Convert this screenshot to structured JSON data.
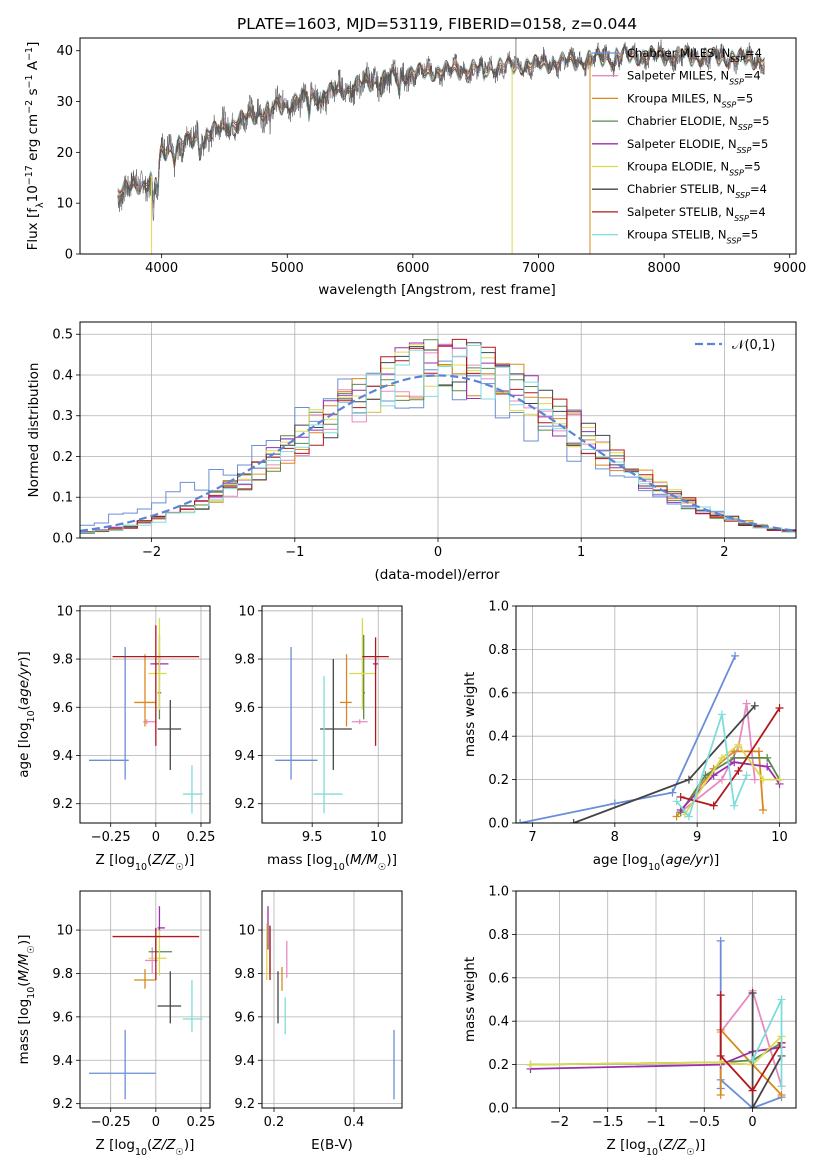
{
  "figure_title": "PLATE=1603, MJD=53119, FIBERID=0158, z=0.044",
  "model_colors": [
    "#6a8ed8",
    "#e78ac3",
    "#d9881f",
    "#5a8a4e",
    "#9b2fae",
    "#dcd94c",
    "#444444",
    "#b2181b",
    "#80dcdc"
  ],
  "spectrum_legend": [
    {
      "main": "Chabrier MILES, N",
      "sub": "SSP",
      "tail": "=4"
    },
    {
      "main": "Salpeter MILES, N",
      "sub": "SSP",
      "tail": "=4"
    },
    {
      "main": "Kroupa MILES, N",
      "sub": "SSP",
      "tail": "=5"
    },
    {
      "main": "Chabrier ELODIE, N",
      "sub": "SSP",
      "tail": "=5"
    },
    {
      "main": "Salpeter ELODIE, N",
      "sub": "SSP",
      "tail": "=5"
    },
    {
      "main": "Kroupa ELODIE, N",
      "sub": "SSP",
      "tail": "=5"
    },
    {
      "main": "Chabrier STELIB, N",
      "sub": "SSP",
      "tail": "=4"
    },
    {
      "main": "Salpeter STELIB, N",
      "sub": "SSP",
      "tail": "=4"
    },
    {
      "main": "Kroupa STELIB, N",
      "sub": "SSP",
      "tail": "=5"
    }
  ],
  "chart_data": [
    {
      "id": "spectrum",
      "type": "line",
      "xlabel": "wavelength [Angstrom, rest frame]",
      "ylabel": "Flux [f_λ 10^-17 erg cm^-2 s^-1 A^-1]",
      "xlim": [
        3350,
        9050
      ],
      "ylim": [
        0,
        42.5
      ],
      "xticks": [
        4000,
        5000,
        6000,
        7000,
        8000,
        9000
      ],
      "yticks": [
        0,
        10,
        20,
        30,
        40
      ],
      "continuum": [
        [
          3650,
          12
        ],
        [
          3800,
          13.5
        ],
        [
          3950,
          15
        ],
        [
          4000,
          20
        ],
        [
          4200,
          22
        ],
        [
          4400,
          24
        ],
        [
          4600,
          26
        ],
        [
          4800,
          28
        ],
        [
          5000,
          29.5
        ],
        [
          5200,
          31
        ],
        [
          5400,
          32
        ],
        [
          5600,
          33.5
        ],
        [
          5800,
          34.5
        ],
        [
          6000,
          35.5
        ],
        [
          6200,
          36
        ],
        [
          6400,
          36.2
        ],
        [
          6600,
          36.7
        ],
        [
          6800,
          37
        ],
        [
          7000,
          37.3
        ],
        [
          7200,
          37.8
        ],
        [
          7400,
          38.2
        ],
        [
          7600,
          39
        ],
        [
          7800,
          39
        ],
        [
          8000,
          39
        ],
        [
          8200,
          38.8
        ],
        [
          8400,
          38.7
        ],
        [
          8600,
          38.5
        ],
        [
          8800,
          38
        ]
      ],
      "model_drops": [
        [
          3920,
          5
        ],
        [
          6790,
          5
        ],
        [
          7410,
          2
        ]
      ]
    },
    {
      "id": "residual_hist",
      "type": "histogram",
      "xlabel": "(data-model)/error",
      "ylabel": "Normed distribution",
      "xlim": [
        -2.5,
        2.5
      ],
      "ylim": [
        0,
        0.53
      ],
      "xticks": [
        -2,
        -1,
        0,
        1,
        2
      ],
      "yticks": [
        0.0,
        0.1,
        0.2,
        0.3,
        0.4,
        0.5
      ],
      "legend": "𝒩(0,1)",
      "reference_curve": "gaussian mean 0, sigma 1",
      "bin_width": 0.1
    },
    {
      "id": "Z_vs_age",
      "type": "errorbar",
      "xlabel": "Z [log10(Z/Z☉)]",
      "ylabel": "age [log10(age/yr)]",
      "xlim": [
        -0.42,
        0.3
      ],
      "ylim": [
        9.12,
        10.02
      ],
      "xticks": [
        -0.25,
        0.0,
        0.25
      ],
      "yticks": [
        9.2,
        9.4,
        9.6,
        9.8,
        10.0
      ],
      "points": [
        {
          "x": -0.17,
          "xerr": [
            0.2,
            0.02
          ],
          "y": 9.38,
          "yerr": [
            0.08,
            0.47
          ]
        },
        {
          "x": -0.05,
          "xerr": [
            0.02,
            0.05
          ],
          "y": 9.54,
          "yerr": [
            0.01,
            0.01
          ]
        },
        {
          "x": -0.06,
          "xerr": [
            0.06,
            0.06
          ],
          "y": 9.62,
          "yerr": [
            0.1,
            0.2
          ]
        },
        {
          "x": 0.02,
          "xerr": [
            0.01,
            0.01
          ],
          "y": 9.66,
          "yerr": [
            0.11,
            0.24
          ]
        },
        {
          "x": 0.02,
          "xerr": [
            0.05,
            0.05
          ],
          "y": 9.78,
          "yerr": [
            0.03,
            0.04
          ]
        },
        {
          "x": 0.02,
          "xerr": [
            0.06,
            0.04
          ],
          "y": 9.74,
          "yerr": [
            0.15,
            0.23
          ]
        },
        {
          "x": 0.08,
          "xerr": [
            0.07,
            0.06
          ],
          "y": 9.51,
          "yerr": [
            0.17,
            0.12
          ]
        },
        {
          "x": 0.0,
          "xerr": [
            0.24,
            0.24
          ],
          "y": 9.81,
          "yerr": [
            0.37,
            0.13
          ]
        },
        {
          "x": 0.2,
          "xerr": [
            0.05,
            0.06
          ],
          "y": 9.24,
          "yerr": [
            0.08,
            0.12
          ]
        }
      ]
    },
    {
      "id": "mass_vs_age",
      "type": "errorbar",
      "xlabel": "mass [log10(M/M☉)]",
      "ylabel": "",
      "xlim": [
        9.12,
        10.18
      ],
      "ylim": [
        9.12,
        10.02
      ],
      "xticks": [
        9.5,
        10.0
      ],
      "yticks": [
        9.2,
        9.4,
        9.6,
        9.8,
        10.0
      ],
      "points": [
        {
          "x": 9.34,
          "xerr": [
            0.12,
            0.2
          ],
          "y": 9.38,
          "yerr": [
            0.08,
            0.47
          ]
        },
        {
          "x": 9.86,
          "xerr": [
            0.06,
            0.06
          ],
          "y": 9.54,
          "yerr": [
            0.01,
            0.01
          ]
        },
        {
          "x": 9.76,
          "xerr": [
            0.05,
            0.04
          ],
          "y": 9.62,
          "yerr": [
            0.1,
            0.2
          ]
        },
        {
          "x": 9.89,
          "xerr": [
            0.01,
            0.01
          ],
          "y": 9.66,
          "yerr": [
            0.11,
            0.24
          ]
        },
        {
          "x": 9.98,
          "xerr": [
            0.02,
            0.02
          ],
          "y": 9.78,
          "yerr": [
            0.02,
            0.03
          ]
        },
        {
          "x": 9.88,
          "xerr": [
            0.1,
            0.1
          ],
          "y": 9.74,
          "yerr": [
            0.15,
            0.23
          ]
        },
        {
          "x": 9.66,
          "xerr": [
            0.1,
            0.14
          ],
          "y": 9.51,
          "yerr": [
            0.17,
            0.29
          ]
        },
        {
          "x": 9.98,
          "xerr": [
            0.1,
            0.1
          ],
          "y": 9.81,
          "yerr": [
            0.37,
            0.08
          ]
        },
        {
          "x": 9.59,
          "xerr": [
            0.08,
            0.14
          ],
          "y": 9.24,
          "yerr": [
            0.08,
            0.49
          ]
        }
      ]
    },
    {
      "id": "age_vs_massweight",
      "type": "line",
      "xlabel": "age [log10(age/yr)]",
      "ylabel": "mass weight",
      "xlim": [
        6.8,
        10.2
      ],
      "ylim": [
        0,
        1.0
      ],
      "xticks": [
        7,
        8,
        9,
        10
      ],
      "yticks": [
        0.0,
        0.2,
        0.4,
        0.6,
        0.8,
        1.0
      ],
      "series": [
        {
          "x": [
            6.85,
            8.0,
            8.7,
            9.46
          ],
          "y": [
            0.0,
            0.09,
            0.14,
            0.77
          ]
        },
        {
          "x": [
            8.8,
            9.3,
            9.5,
            9.6,
            9.7
          ],
          "y": [
            0.05,
            0.2,
            0.35,
            0.55,
            0.2
          ]
        },
        {
          "x": [
            8.75,
            9.2,
            9.45,
            9.75,
            9.8
          ],
          "y": [
            0.03,
            0.25,
            0.33,
            0.33,
            0.06
          ]
        },
        {
          "x": [
            8.8,
            9.1,
            9.45,
            9.85,
            10.0
          ],
          "y": [
            0.05,
            0.22,
            0.3,
            0.3,
            0.2
          ]
        },
        {
          "x": [
            8.8,
            9.2,
            9.45,
            9.85,
            10.0
          ],
          "y": [
            0.06,
            0.22,
            0.28,
            0.26,
            0.18
          ]
        },
        {
          "x": [
            8.85,
            9.3,
            9.5,
            9.8,
            10.0
          ],
          "y": [
            0.04,
            0.3,
            0.36,
            0.2,
            0.2
          ]
        },
        {
          "x": [
            7.5,
            8.9,
            9.7
          ],
          "y": [
            0.0,
            0.2,
            0.54
          ]
        },
        {
          "x": [
            8.8,
            9.2,
            9.5,
            10.0
          ],
          "y": [
            0.12,
            0.08,
            0.24,
            0.53
          ]
        },
        {
          "x": [
            8.75,
            8.9,
            9.3,
            9.45,
            9.6
          ],
          "y": [
            0.1,
            0.03,
            0.5,
            0.08,
            0.22
          ]
        }
      ]
    },
    {
      "id": "Z_vs_mass",
      "type": "errorbar",
      "xlabel": "Z [log10(Z/Z☉)]",
      "ylabel": "mass [log10(M/M☉)]",
      "xlim": [
        -0.42,
        0.3
      ],
      "ylim": [
        9.18,
        10.18
      ],
      "xticks": [
        -0.25,
        0.0,
        0.25
      ],
      "yticks": [
        9.2,
        9.4,
        9.6,
        9.8,
        10.0
      ],
      "points": [
        {
          "x": -0.17,
          "xerr": [
            0.2,
            0.17
          ],
          "y": 9.34,
          "yerr": [
            0.12,
            0.2
          ]
        },
        {
          "x": -0.02,
          "xerr": [
            0.04,
            0.03
          ],
          "y": 9.86,
          "yerr": [
            0.06,
            0.06
          ]
        },
        {
          "x": -0.06,
          "xerr": [
            0.06,
            0.06
          ],
          "y": 9.77,
          "yerr": [
            0.04,
            0.05
          ]
        },
        {
          "x": 0.0,
          "xerr": [
            0.04,
            0.09
          ],
          "y": 9.9,
          "yerr": [
            0.05,
            0.06
          ]
        },
        {
          "x": 0.02,
          "xerr": [
            0.01,
            0.03
          ],
          "y": 10.01,
          "yerr": [
            0.02,
            0.1
          ]
        },
        {
          "x": 0.02,
          "xerr": [
            0.06,
            0.04
          ],
          "y": 9.87,
          "yerr": [
            0.08,
            0.13
          ]
        },
        {
          "x": 0.08,
          "xerr": [
            0.07,
            0.06
          ],
          "y": 9.65,
          "yerr": [
            0.08,
            0.16
          ]
        },
        {
          "x": 0.0,
          "xerr": [
            0.24,
            0.24
          ],
          "y": 9.97,
          "yerr": [
            0.2,
            0.04
          ]
        },
        {
          "x": 0.2,
          "xerr": [
            0.05,
            0.06
          ],
          "y": 9.59,
          "yerr": [
            0.06,
            0.18
          ]
        }
      ]
    },
    {
      "id": "EBV_vs_mass",
      "type": "errorbar",
      "xlabel": "E(B-V)",
      "ylabel": "",
      "xlim": [
        0.17,
        0.52
      ],
      "ylim": [
        9.18,
        10.18
      ],
      "xticks": [
        0.2,
        0.4
      ],
      "yticks": [
        9.2,
        9.4,
        9.6,
        9.8,
        10.0
      ],
      "points": [
        {
          "x": 0.5,
          "xerr": [
            0,
            0
          ],
          "y": 9.34,
          "yerr": [
            0.12,
            0.2
          ]
        },
        {
          "x": 0.232,
          "xerr": [
            0,
            0
          ],
          "y": 9.86,
          "yerr": [
            0.08,
            0.09
          ]
        },
        {
          "x": 0.22,
          "xerr": [
            0,
            0
          ],
          "y": 9.77,
          "yerr": [
            0.05,
            0.06
          ]
        },
        {
          "x": 0.19,
          "xerr": [
            0,
            0
          ],
          "y": 9.9,
          "yerr": [
            0.1,
            0.12
          ]
        },
        {
          "x": 0.185,
          "xerr": [
            0,
            0
          ],
          "y": 10.01,
          "yerr": [
            0.1,
            0.1
          ]
        },
        {
          "x": 0.182,
          "xerr": [
            0,
            0
          ],
          "y": 9.87,
          "yerr": [
            0.1,
            0.16
          ]
        },
        {
          "x": 0.21,
          "xerr": [
            0,
            0
          ],
          "y": 9.65,
          "yerr": [
            0.08,
            0.16
          ]
        },
        {
          "x": 0.19,
          "xerr": [
            0,
            0
          ],
          "y": 9.97,
          "yerr": [
            0.2,
            0.05
          ]
        },
        {
          "x": 0.228,
          "xerr": [
            0,
            0
          ],
          "y": 9.59,
          "yerr": [
            0.07,
            0.1
          ]
        }
      ]
    },
    {
      "id": "Z_vs_massweight",
      "type": "line",
      "xlabel": "Z [log10(Z/Z☉)]",
      "ylabel": "mass weight",
      "xlim": [
        -2.45,
        0.45
      ],
      "ylim": [
        0,
        1.0
      ],
      "xticks": [
        -2.0,
        -1.5,
        -1.0,
        -0.5,
        0.0
      ],
      "yticks": [
        0.0,
        0.2,
        0.4,
        0.6,
        0.8,
        1.0
      ],
      "series": [
        {
          "x": [
            -0.33,
            -0.33,
            -0.33,
            0.0,
            0.3
          ],
          "y": [
            0.09,
            0.77,
            0.13,
            0.0,
            0.05
          ]
        },
        {
          "x": [
            -0.33,
            0.0,
            0.3
          ],
          "y": [
            0.35,
            0.54,
            0.1
          ]
        },
        {
          "x": [
            -0.33,
            -0.33,
            0.0,
            0.3
          ],
          "y": [
            0.06,
            0.36,
            0.2,
            0.06
          ]
        },
        {
          "x": [
            -2.3,
            -0.33,
            0.0,
            0.3
          ],
          "y": [
            0.2,
            0.21,
            0.22,
            0.3
          ]
        },
        {
          "x": [
            -2.3,
            -0.33,
            0.0,
            0.3
          ],
          "y": [
            0.18,
            0.2,
            0.26,
            0.28
          ]
        },
        {
          "x": [
            -2.3,
            -0.33,
            0.0,
            0.3
          ],
          "y": [
            0.2,
            0.21,
            0.2,
            0.33
          ]
        },
        {
          "x": [
            0.0,
            0.0,
            0.3
          ],
          "y": [
            0.53,
            0.0,
            0.24
          ]
        },
        {
          "x": [
            -0.33,
            -0.33,
            0.0,
            0.3
          ],
          "y": [
            0.52,
            0.24,
            0.08,
            0.3
          ]
        },
        {
          "x": [
            0.0,
            0.3,
            0.3
          ],
          "y": [
            0.22,
            0.5,
            0.1
          ]
        }
      ]
    }
  ]
}
